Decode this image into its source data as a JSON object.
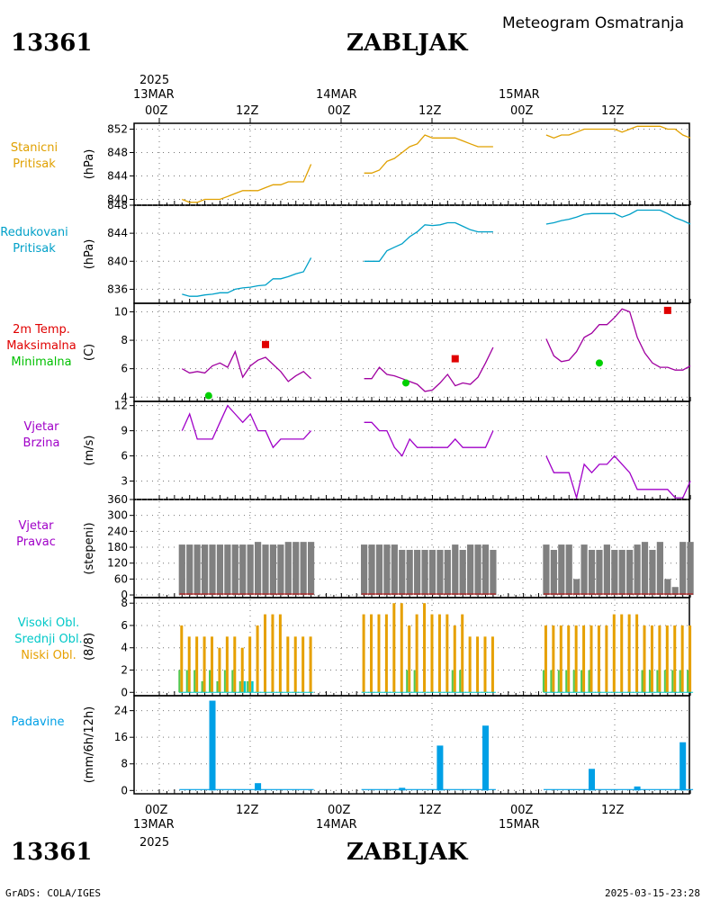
{
  "header": {
    "station_id": "13361",
    "station_name": "ZABLJAK",
    "title": "Meteogram Osmatranja"
  },
  "time_axis": {
    "year": "2025",
    "days": [
      {
        "date": "13MAR",
        "hour": "00Z"
      },
      {
        "date": "14MAR",
        "hour": "00Z"
      },
      {
        "date": "15MAR",
        "hour": "00Z"
      }
    ],
    "noon": "12Z"
  },
  "footer": {
    "credit": "GrADS: COLA/IGES",
    "timestamp": "2025-03-15-23:28"
  },
  "colors": {
    "pressure_station": "#e0a000",
    "pressure_reduced": "#00a0c8",
    "temperature": "#a000a0",
    "tmax": "#e00000",
    "tmin": "#00d000",
    "wind": "#a000c8",
    "direction": "#808080",
    "cloud_high": "#00c8c8",
    "cloud_mid": "#50c850",
    "cloud_low": "#e6a000",
    "precip": "#00a0e6"
  },
  "chart_data": [
    {
      "type": "line",
      "labels": [
        "Stanicni",
        "Pritisak"
      ],
      "unit": "(hPa)",
      "ylim": [
        839,
        853
      ],
      "ticks": [
        840,
        844,
        848,
        852
      ],
      "grid": true,
      "x": [
        3,
        4,
        5,
        6,
        7,
        8,
        9,
        10,
        11,
        12,
        13,
        14,
        15,
        16,
        17,
        18,
        19,
        20,
        27,
        28,
        29,
        30,
        31,
        32,
        33,
        34,
        35,
        36,
        37,
        38,
        39,
        40,
        41,
        42,
        43,
        44,
        51,
        52,
        53,
        54,
        55,
        56,
        57,
        58,
        59,
        60,
        61,
        62,
        63,
        64,
        65,
        66,
        67,
        68,
        69,
        70
      ],
      "values": [
        840,
        839.5,
        839.5,
        840,
        840,
        840,
        840.5,
        841,
        841.5,
        841.5,
        841.5,
        842,
        842.5,
        842.5,
        843,
        843,
        843,
        846,
        844.5,
        844.5,
        845,
        846.5,
        847,
        848,
        849,
        849.5,
        851,
        850.5,
        850.5,
        850.5,
        850.5,
        850,
        849.5,
        849,
        849,
        849,
        851,
        850.5,
        851,
        851,
        851.5,
        852,
        852,
        852,
        852,
        852,
        851.5,
        852,
        852.5,
        852.5,
        852.5,
        852.5,
        852,
        852,
        851,
        850.5
      ]
    },
    {
      "type": "line",
      "labels": [
        "Redukovani",
        "Pritisak"
      ],
      "unit": "(hPa)",
      "ylim": [
        834,
        848
      ],
      "ticks": [
        836,
        840,
        844,
        848
      ],
      "grid": true,
      "x": [
        3,
        4,
        5,
        6,
        7,
        8,
        9,
        10,
        11,
        12,
        13,
        14,
        15,
        16,
        17,
        18,
        19,
        20,
        27,
        28,
        29,
        30,
        31,
        32,
        33,
        34,
        35,
        36,
        37,
        38,
        39,
        40,
        41,
        42,
        43,
        44,
        51,
        52,
        53,
        54,
        55,
        56,
        57,
        58,
        59,
        60,
        61,
        62,
        63,
        64,
        65,
        66,
        67,
        68,
        69,
        70
      ],
      "values": [
        835.3,
        835,
        835,
        835.2,
        835.3,
        835.5,
        835.5,
        836,
        836.2,
        836.3,
        836.5,
        836.6,
        837.5,
        837.5,
        837.8,
        838.2,
        838.5,
        840.5,
        840,
        840,
        840,
        841.5,
        842,
        842.5,
        843.5,
        844.2,
        845.2,
        845.1,
        845.2,
        845.5,
        845.5,
        845,
        844.5,
        844.2,
        844.2,
        844.2,
        845.3,
        845.5,
        845.8,
        846,
        846.3,
        846.7,
        846.8,
        846.8,
        846.8,
        846.8,
        846.3,
        846.7,
        847.3,
        847.3,
        847.3,
        847.3,
        846.8,
        846.2,
        845.8,
        845.3
      ]
    },
    {
      "type": "line",
      "labels": [
        "2m Temp.",
        "Maksimalna",
        "Minimalna"
      ],
      "unit": "(C)",
      "ylim": [
        3.7,
        10.6
      ],
      "ticks": [
        4,
        6,
        8,
        10
      ],
      "grid": true,
      "x": [
        3,
        4,
        5,
        6,
        7,
        8,
        9,
        10,
        11,
        12,
        13,
        14,
        15,
        16,
        17,
        18,
        19,
        20,
        27,
        28,
        29,
        30,
        31,
        32,
        33,
        34,
        35,
        36,
        37,
        38,
        39,
        40,
        41,
        42,
        43,
        44,
        51,
        52,
        53,
        54,
        55,
        56,
        57,
        58,
        59,
        60,
        61,
        62,
        63,
        64,
        65,
        66,
        67,
        68,
        69,
        70
      ],
      "values": [
        6,
        5.7,
        5.8,
        5.7,
        6.2,
        6.4,
        6.1,
        7.2,
        5.4,
        6.2,
        6.6,
        6.8,
        6.3,
        5.8,
        5.1,
        5.5,
        5.8,
        5.3,
        5.3,
        5.3,
        6.1,
        5.6,
        5.5,
        5.3,
        5.1,
        4.9,
        4.4,
        4.5,
        5,
        5.6,
        4.8,
        5,
        4.9,
        5.4,
        6.4,
        7.5,
        8.1,
        6.9,
        6.5,
        6.6,
        7.2,
        8.2,
        8.5,
        9.1,
        9.1,
        9.6,
        10.2,
        10,
        8.2,
        7.1,
        6.4,
        6.1,
        6.1,
        5.9,
        5.9,
        6.2
      ],
      "tmax": [
        {
          "x": 14,
          "value": 7.7
        },
        {
          "x": 39,
          "value": 6.7
        },
        {
          "x": 67,
          "value": 10.1
        }
      ],
      "tmin": [
        {
          "x": 6.5,
          "value": 4.1
        },
        {
          "x": 32.5,
          "value": 5
        },
        {
          "x": 58,
          "value": 6.4
        }
      ]
    },
    {
      "type": "line",
      "labels": [
        "Vjetar",
        "Brzina"
      ],
      "unit": "(m/s)",
      "ylim": [
        0.8,
        12.5
      ],
      "ticks": [
        3,
        6,
        9,
        12
      ],
      "grid": true,
      "x": [
        3,
        4,
        5,
        6,
        7,
        8,
        9,
        10,
        11,
        12,
        13,
        14,
        15,
        16,
        17,
        18,
        19,
        20,
        27,
        28,
        29,
        30,
        31,
        32,
        33,
        34,
        35,
        36,
        37,
        38,
        39,
        40,
        41,
        42,
        43,
        44,
        51,
        52,
        53,
        54,
        55,
        56,
        57,
        58,
        59,
        60,
        61,
        62,
        63,
        64,
        65,
        66,
        67,
        68,
        69,
        70
      ],
      "values": [
        9,
        11,
        8,
        8,
        8,
        10,
        12,
        11,
        10,
        11,
        9,
        9,
        7,
        8,
        8,
        8,
        8,
        9,
        10,
        10,
        9,
        9,
        7,
        6,
        8,
        7,
        7,
        7,
        7,
        7,
        8,
        7,
        7,
        7,
        7,
        9,
        6,
        4,
        4,
        4,
        1,
        5,
        4,
        5,
        5,
        6,
        5,
        4,
        2,
        2,
        2,
        2,
        2,
        1,
        1,
        3
      ]
    },
    {
      "type": "bar",
      "labels": [
        "Vjetar",
        "Pravac"
      ],
      "unit": "(stepeni)",
      "ylim": [
        -10,
        360
      ],
      "ticks": [
        0,
        60,
        120,
        180,
        240,
        300,
        360
      ],
      "grid": true,
      "x": [
        3,
        4,
        5,
        6,
        7,
        8,
        9,
        10,
        11,
        12,
        13,
        14,
        15,
        16,
        17,
        18,
        19,
        20,
        27,
        28,
        29,
        30,
        31,
        32,
        33,
        34,
        35,
        36,
        37,
        38,
        39,
        40,
        41,
        42,
        43,
        44,
        51,
        52,
        53,
        54,
        55,
        56,
        57,
        58,
        59,
        60,
        61,
        62,
        63,
        64,
        65,
        66,
        67,
        68,
        69,
        70
      ],
      "values": [
        190,
        190,
        190,
        190,
        190,
        190,
        190,
        190,
        190,
        190,
        200,
        190,
        190,
        190,
        200,
        200,
        200,
        200,
        190,
        190,
        190,
        190,
        190,
        170,
        170,
        170,
        170,
        170,
        170,
        170,
        190,
        170,
        190,
        190,
        190,
        170,
        190,
        170,
        190,
        190,
        60,
        190,
        170,
        170,
        190,
        170,
        170,
        170,
        190,
        200,
        170,
        200,
        60,
        30,
        200,
        200
      ]
    },
    {
      "type": "bar",
      "labels": [
        "Visoki Obl.",
        "Srednji Obl.",
        "Niski Obl."
      ],
      "unit": "(8/8)",
      "ylim": [
        -0.3,
        8.5
      ],
      "ticks": [
        0,
        2,
        4,
        6,
        8
      ],
      "grid": true,
      "x": [
        3,
        4,
        5,
        6,
        7,
        8,
        9,
        10,
        11,
        12,
        13,
        14,
        15,
        16,
        17,
        18,
        19,
        20,
        27,
        28,
        29,
        30,
        31,
        32,
        33,
        34,
        35,
        36,
        37,
        38,
        39,
        40,
        41,
        42,
        43,
        44,
        51,
        52,
        53,
        54,
        55,
        56,
        57,
        58,
        59,
        60,
        61,
        62,
        63,
        64,
        65,
        66,
        67,
        68,
        69,
        70
      ],
      "series": [
        {
          "name": "Niski Obl.",
          "values": [
            6,
            5,
            5,
            5,
            5,
            4,
            5,
            5,
            4,
            5,
            6,
            7,
            7,
            7,
            5,
            5,
            5,
            5,
            7,
            7,
            7,
            7,
            8,
            8,
            6,
            7,
            8,
            7,
            7,
            7,
            6,
            7,
            5,
            5,
            5,
            5,
            6,
            6,
            6,
            6,
            6,
            6,
            6,
            6,
            6,
            7,
            7,
            7,
            7,
            6,
            6,
            6,
            6,
            6,
            6,
            6
          ]
        },
        {
          "name": "Srednji Obl.",
          "values": [
            2,
            2,
            2,
            1,
            2,
            1,
            2,
            2,
            1,
            1,
            0,
            0,
            0,
            0,
            0,
            0,
            0,
            0,
            0,
            0,
            0,
            0,
            0,
            0,
            2,
            2,
            0,
            0,
            0,
            0,
            2,
            2,
            0,
            0,
            0,
            0,
            2,
            2,
            2,
            2,
            2,
            2,
            2,
            0,
            0,
            0,
            0,
            0,
            0,
            2,
            2,
            2,
            2,
            2,
            2,
            2
          ]
        },
        {
          "name": "Visoki Obl.",
          "values": [
            0,
            0,
            0,
            0,
            0,
            0,
            0,
            0,
            1,
            1,
            0,
            0,
            0,
            0,
            0,
            0,
            0,
            0,
            0,
            0,
            0,
            0,
            0,
            0,
            0,
            0,
            0,
            0,
            0,
            0,
            0,
            0,
            0,
            0,
            0,
            0,
            0,
            0,
            0,
            0,
            0,
            0,
            0,
            0,
            0,
            0,
            0,
            0,
            0,
            0,
            0,
            0,
            0,
            0,
            0,
            0
          ]
        }
      ]
    },
    {
      "type": "bar",
      "labels": [
        "Padavine"
      ],
      "unit": "(mm/6h/12h)",
      "ylim": [
        -1,
        28.5
      ],
      "ticks": [
        0,
        8,
        16,
        24
      ],
      "grid": true,
      "x": [
        7,
        13,
        32,
        37,
        43,
        57,
        63,
        69
      ],
      "values": [
        27,
        2.2,
        0.8,
        13.5,
        19.5,
        6.5,
        1.2,
        14.5
      ]
    }
  ]
}
